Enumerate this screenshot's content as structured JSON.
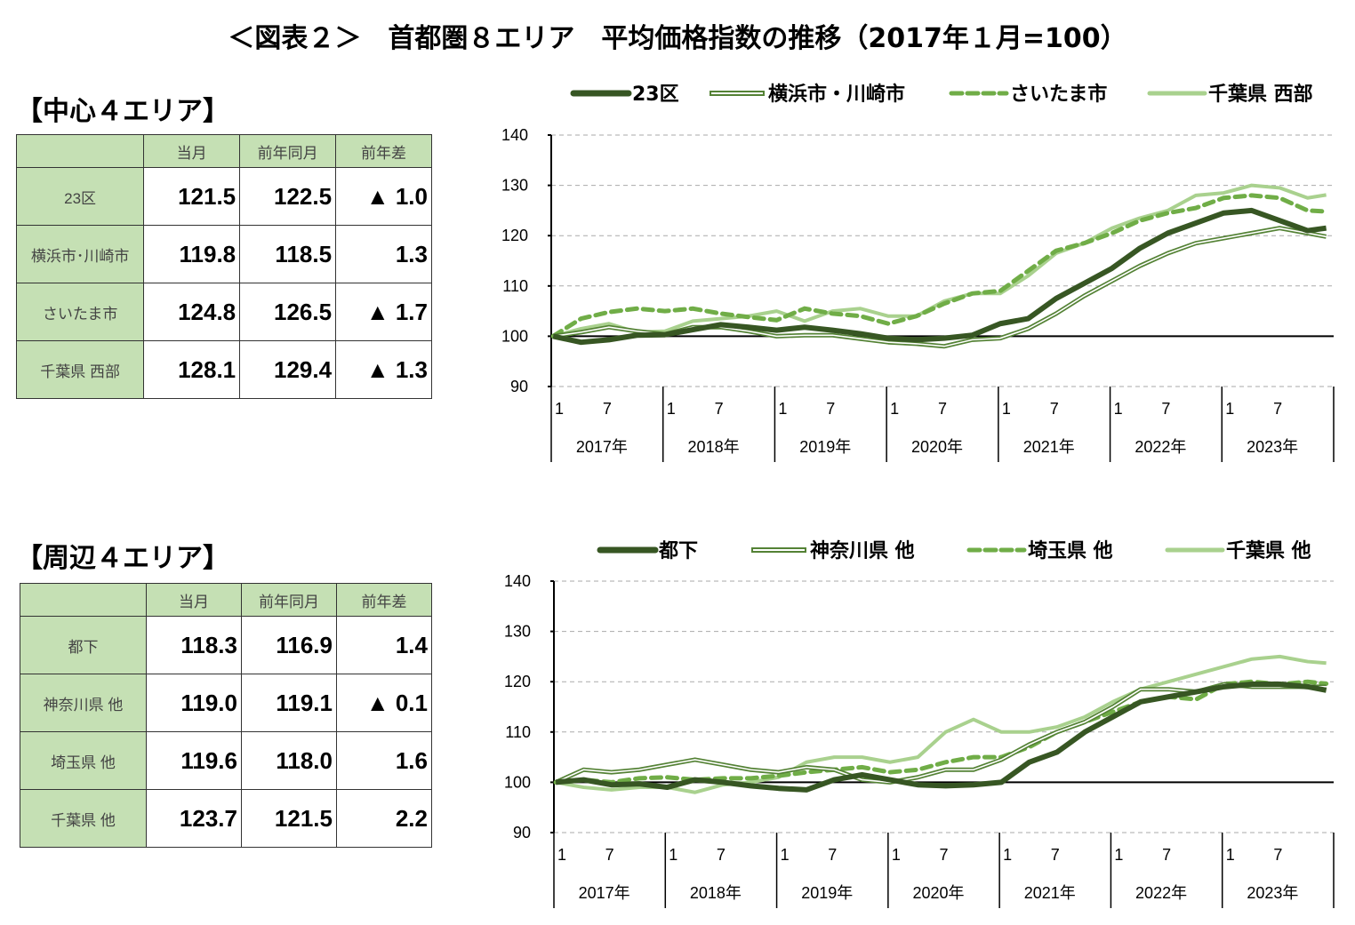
{
  "title": "＜図表２＞　首都圏８エリア　平均価格指数の推移（2017年１月=100）",
  "tables": [
    {
      "heading": "【中心４エリア】",
      "columns": [
        "",
        "当月",
        "前年同月",
        "前年差"
      ],
      "rows": [
        [
          "23区",
          "121.5",
          "122.5",
          "▲ 1.0"
        ],
        [
          "横浜市･川崎市",
          "119.8",
          "118.5",
          "1.3"
        ],
        [
          "さいたま市",
          "124.8",
          "126.5",
          "▲ 1.7"
        ],
        [
          "千葉県 西部",
          "128.1",
          "129.4",
          "▲ 1.3"
        ]
      ]
    },
    {
      "heading": "【周辺４エリア】",
      "columns": [
        "",
        "当月",
        "前年同月",
        "前年差"
      ],
      "rows": [
        [
          "都下",
          "118.3",
          "116.9",
          "1.4"
        ],
        [
          "神奈川県 他",
          "119.0",
          "119.1",
          "▲ 0.1"
        ],
        [
          "埼玉県 他",
          "119.6",
          "118.0",
          "1.6"
        ],
        [
          "千葉県 他",
          "123.7",
          "121.5",
          "2.2"
        ]
      ]
    }
  ],
  "chart_data": [
    {
      "type": "line",
      "ylim": [
        90,
        140
      ],
      "yticks": [
        90,
        100,
        110,
        120,
        130,
        140
      ],
      "grid": true,
      "legend": "top",
      "month_ticks": [
        "1",
        "7"
      ],
      "years": [
        "2017年",
        "2018年",
        "2019年",
        "2020年",
        "2021年",
        "2022年",
        "2023年"
      ],
      "x": [
        "2017-01",
        "2017-04",
        "2017-07",
        "2017-10",
        "2018-01",
        "2018-04",
        "2018-07",
        "2018-10",
        "2019-01",
        "2019-04",
        "2019-07",
        "2019-10",
        "2020-01",
        "2020-04",
        "2020-07",
        "2020-10",
        "2021-01",
        "2021-04",
        "2021-07",
        "2021-10",
        "2022-01",
        "2022-04",
        "2022-07",
        "2022-10",
        "2023-01",
        "2023-04",
        "2023-07",
        "2023-10",
        "2023-12"
      ],
      "series": [
        {
          "name": "23区",
          "style": "thick",
          "color": "#375623",
          "values": [
            100,
            98.8,
            99.3,
            100.2,
            100.3,
            101.3,
            102.3,
            101.8,
            101.2,
            101.8,
            101.2,
            100.5,
            99.6,
            99.3,
            99.6,
            100.2,
            102.5,
            103.5,
            107.5,
            110.5,
            113.5,
            117.5,
            120.5,
            122.5,
            124.5,
            125,
            123,
            121,
            121.5
          ]
        },
        {
          "name": "横浜市・川崎市",
          "style": "double",
          "color": "#548235",
          "values": [
            100,
            100.8,
            101.8,
            101,
            100.4,
            101.8,
            101.8,
            101,
            100,
            100.2,
            100.2,
            99.5,
            98.8,
            98.5,
            98,
            99.3,
            99.6,
            101.5,
            104.5,
            108,
            111,
            114,
            116.5,
            118.5,
            119.5,
            120.5,
            121.5,
            120.5,
            119.8
          ]
        },
        {
          "name": "さいたま市",
          "style": "dashed",
          "color": "#70ad47",
          "values": [
            100,
            103.5,
            104.8,
            105.5,
            105,
            105.5,
            104.5,
            103.8,
            103.2,
            105.5,
            104.5,
            104,
            102.5,
            104,
            106.5,
            108.5,
            109,
            113,
            117,
            118.5,
            120.5,
            123,
            124.5,
            125.5,
            127.5,
            128,
            127.5,
            125,
            124.8
          ]
        },
        {
          "name": "千葉県 西部",
          "style": "light",
          "color": "#a9d18e",
          "values": [
            100,
            101.5,
            102.5,
            100.8,
            101,
            103,
            103.5,
            104,
            105,
            103,
            105,
            105.5,
            104,
            104,
            107,
            108.5,
            108.5,
            112,
            116.5,
            118.5,
            121.5,
            123.5,
            125,
            128,
            128.5,
            130,
            129.5,
            127.5,
            128.1
          ]
        }
      ]
    },
    {
      "type": "line",
      "ylim": [
        90,
        140
      ],
      "yticks": [
        90,
        100,
        110,
        120,
        130,
        140
      ],
      "grid": true,
      "legend": "top",
      "month_ticks": [
        "1",
        "7"
      ],
      "years": [
        "2017年",
        "2018年",
        "2019年",
        "2020年",
        "2021年",
        "2022年",
        "2023年"
      ],
      "x": [
        "2017-01",
        "2017-04",
        "2017-07",
        "2017-10",
        "2018-01",
        "2018-04",
        "2018-07",
        "2018-10",
        "2019-01",
        "2019-04",
        "2019-07",
        "2019-10",
        "2020-01",
        "2020-04",
        "2020-07",
        "2020-10",
        "2021-01",
        "2021-04",
        "2021-07",
        "2021-10",
        "2022-01",
        "2022-04",
        "2022-07",
        "2022-10",
        "2023-01",
        "2023-04",
        "2023-07",
        "2023-10",
        "2023-12"
      ],
      "series": [
        {
          "name": "都下",
          "style": "thick",
          "color": "#375623",
          "values": [
            100,
            100.5,
            99.5,
            99.7,
            99,
            100.5,
            100,
            99.3,
            98.8,
            98.5,
            100.5,
            101.5,
            100.5,
            99.5,
            99.3,
            99.5,
            100,
            104,
            106,
            110,
            113,
            116,
            117,
            118,
            119,
            119.5,
            119.5,
            119,
            118.3
          ]
        },
        {
          "name": "神奈川県 他",
          "style": "double",
          "color": "#548235",
          "values": [
            100,
            102.5,
            102,
            102.5,
            103.5,
            104.5,
            103.5,
            102.5,
            102,
            103,
            102.5,
            100.5,
            100,
            101,
            102.5,
            102.5,
            104.5,
            107.5,
            110,
            112,
            115,
            118.5,
            118.5,
            118,
            119.5,
            119,
            119,
            119,
            119
          ]
        },
        {
          "name": "埼玉県 他",
          "style": "dashed",
          "color": "#70ad47",
          "values": [
            100,
            100.5,
            100,
            100.8,
            101,
            100.5,
            100.8,
            100.8,
            101.3,
            102,
            102.5,
            103,
            102,
            102.5,
            104,
            105,
            105,
            107,
            110,
            112,
            114,
            116,
            117,
            116.5,
            119.5,
            120,
            119.5,
            120,
            119.6
          ]
        },
        {
          "name": "千葉県 他",
          "style": "light",
          "color": "#a9d18e",
          "values": [
            100,
            99,
            98.5,
            99,
            99,
            98,
            99.5,
            100,
            101,
            104,
            105,
            105,
            104,
            105,
            110,
            112.5,
            110,
            110,
            111,
            113,
            116,
            118.5,
            120,
            121.5,
            123,
            124.5,
            125,
            124,
            123.7
          ]
        }
      ]
    }
  ]
}
